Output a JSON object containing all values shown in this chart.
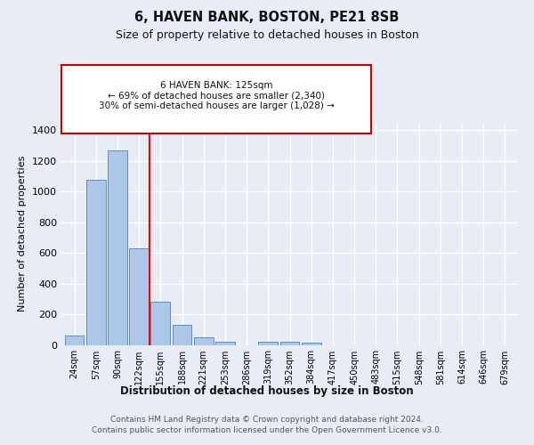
{
  "title1": "6, HAVEN BANK, BOSTON, PE21 8SB",
  "title2": "Size of property relative to detached houses in Boston",
  "xlabel": "Distribution of detached houses by size in Boston",
  "ylabel": "Number of detached properties",
  "categories": [
    "24sqm",
    "57sqm",
    "90sqm",
    "122sqm",
    "155sqm",
    "188sqm",
    "221sqm",
    "253sqm",
    "286sqm",
    "319sqm",
    "352sqm",
    "384sqm",
    "417sqm",
    "450sqm",
    "483sqm",
    "515sqm",
    "548sqm",
    "581sqm",
    "614sqm",
    "646sqm",
    "679sqm"
  ],
  "values": [
    63,
    1075,
    1270,
    630,
    280,
    128,
    47,
    20,
    0,
    20,
    20,
    13,
    0,
    0,
    0,
    0,
    0,
    0,
    0,
    0,
    0
  ],
  "bar_color": "#aec6e8",
  "bar_edge_color": "#5a8fc0",
  "red_line_index": 3.5,
  "annotation_text": "6 HAVEN BANK: 125sqm\n← 69% of detached houses are smaller (2,340)\n30% of semi-detached houses are larger (1,028) →",
  "annotation_box_color": "#ffffff",
  "annotation_box_edge": "#cc0000",
  "footer_text": "Contains HM Land Registry data © Crown copyright and database right 2024.\nContains public sector information licensed under the Open Government Licence v3.0.",
  "bg_color": "#e8edf5",
  "plot_bg_color": "#e8edf5",
  "grid_color": "#ffffff",
  "ylim": [
    0,
    1450
  ],
  "yticks": [
    0,
    200,
    400,
    600,
    800,
    1000,
    1200,
    1400
  ]
}
